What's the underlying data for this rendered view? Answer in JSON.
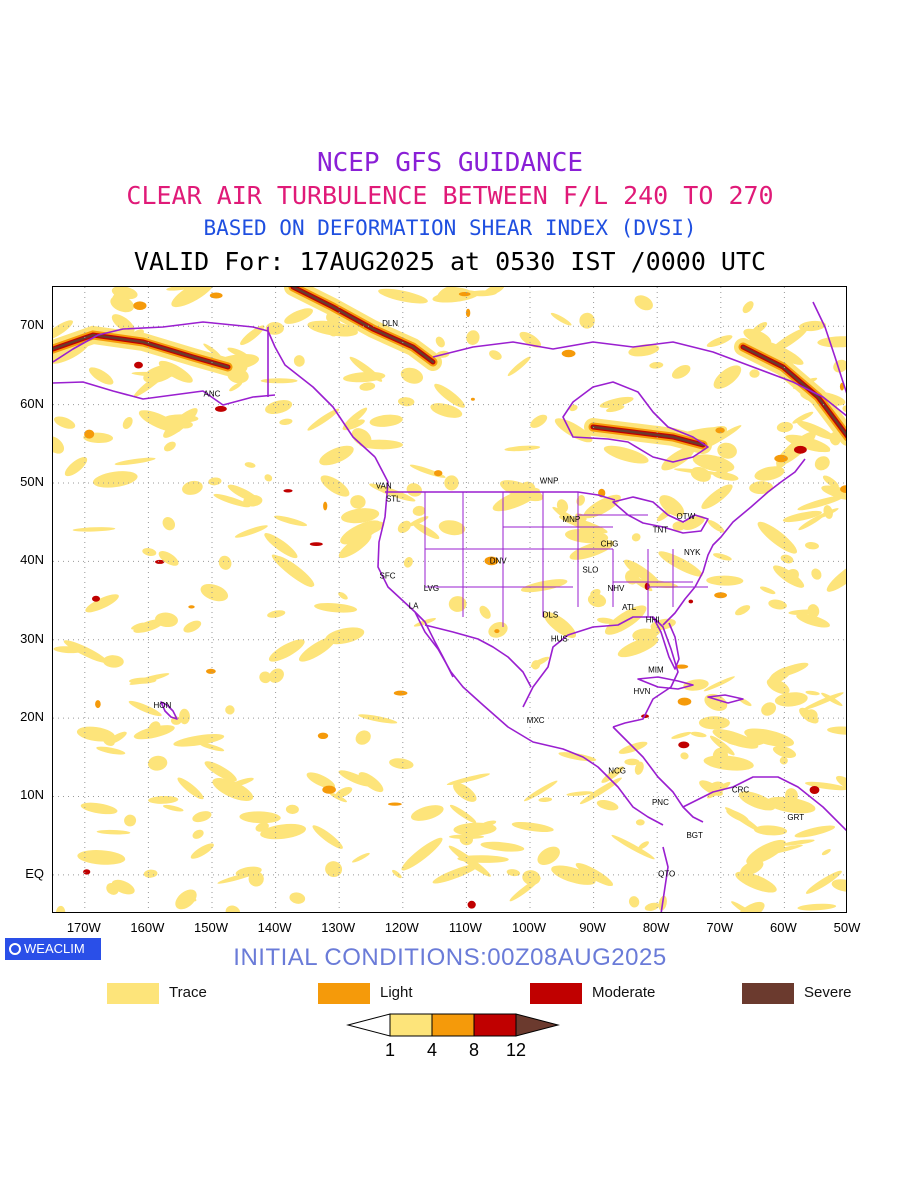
{
  "titles": {
    "line1": "NCEP GFS GUIDANCE",
    "line2": "CLEAR AIR TURBULENCE BETWEEN F/L 240 TO 270",
    "line3": "BASED ON DEFORMATION SHEAR INDEX (DVSI)",
    "line4": "VALID For: 17AUG2025 at 0530 IST /0000 UTC"
  },
  "colors": {
    "title1": "#8a1fd6",
    "title2": "#e01a78",
    "title3": "#1f4fe0",
    "boundary": "#9a1fd0",
    "trace": "#fde47a",
    "light": "#f59a0a",
    "moderate": "#c00000",
    "severe": "#6b3a2e",
    "brand": "#2a4fe8",
    "init": "#6a7bd8"
  },
  "map": {
    "extent": {
      "lon_min": -175,
      "lon_max": -50,
      "lat_min": -5,
      "lat_max": 75
    },
    "lat_ticks": [
      {
        "lat": 70,
        "label": "70N"
      },
      {
        "lat": 60,
        "label": "60N"
      },
      {
        "lat": 50,
        "label": "50N"
      },
      {
        "lat": 40,
        "label": "40N"
      },
      {
        "lat": 30,
        "label": "30N"
      },
      {
        "lat": 20,
        "label": "20N"
      },
      {
        "lat": 10,
        "label": "10N"
      },
      {
        "lat": 0,
        "label": "EQ"
      }
    ],
    "lon_ticks": [
      {
        "lon": -170,
        "label": "170W"
      },
      {
        "lon": -160,
        "label": "160W"
      },
      {
        "lon": -150,
        "label": "150W"
      },
      {
        "lon": -140,
        "label": "140W"
      },
      {
        "lon": -130,
        "label": "130W"
      },
      {
        "lon": -120,
        "label": "120W"
      },
      {
        "lon": -110,
        "label": "110W"
      },
      {
        "lon": -100,
        "label": "100W"
      },
      {
        "lon": -90,
        "label": "90W"
      },
      {
        "lon": -80,
        "label": "80W"
      },
      {
        "lon": -70,
        "label": "70W"
      },
      {
        "lon": -60,
        "label": "60W"
      },
      {
        "lon": -50,
        "label": "50W"
      }
    ],
    "stations": [
      {
        "code": "DLN",
        "lon": -122,
        "lat": 70
      },
      {
        "code": "ANC",
        "lon": -150,
        "lat": 61
      },
      {
        "code": "VAN",
        "lon": -123,
        "lat": 49.3
      },
      {
        "code": "STL",
        "lon": -121.5,
        "lat": 47.6
      },
      {
        "code": "WNP",
        "lon": -97,
        "lat": 49.9
      },
      {
        "code": "MNP",
        "lon": -93.5,
        "lat": 45
      },
      {
        "code": "TNT",
        "lon": -79.5,
        "lat": 43.7
      },
      {
        "code": "OTW",
        "lon": -75.5,
        "lat": 45.4
      },
      {
        "code": "CHG",
        "lon": -87.5,
        "lat": 41.9
      },
      {
        "code": "NYK",
        "lon": -74.5,
        "lat": 40.8
      },
      {
        "code": "DNV",
        "lon": -105,
        "lat": 39.7
      },
      {
        "code": "SFC",
        "lon": -122.4,
        "lat": 37.8
      },
      {
        "code": "SLO",
        "lon": -90.5,
        "lat": 38.6
      },
      {
        "code": "LVG",
        "lon": -115.5,
        "lat": 36.2
      },
      {
        "code": "NHV",
        "lon": -86.5,
        "lat": 36.2
      },
      {
        "code": "LA",
        "lon": -118.3,
        "lat": 34
      },
      {
        "code": "ATL",
        "lon": -84.4,
        "lat": 33.8
      },
      {
        "code": "DLS",
        "lon": -96.8,
        "lat": 32.8
      },
      {
        "code": "HHI",
        "lon": -80.7,
        "lat": 32.2
      },
      {
        "code": "HUS",
        "lon": -95.4,
        "lat": 29.8
      },
      {
        "code": "MIM",
        "lon": -80.2,
        "lat": 25.8
      },
      {
        "code": "HVN",
        "lon": -82.4,
        "lat": 23.1
      },
      {
        "code": "HON",
        "lon": -157.8,
        "lat": 21.3
      },
      {
        "code": "MXC",
        "lon": -99.1,
        "lat": 19.4
      },
      {
        "code": "NCG",
        "lon": -86.3,
        "lat": 12.9
      },
      {
        "code": "CRC",
        "lon": -66.9,
        "lat": 10.5
      },
      {
        "code": "PNC",
        "lon": -79.5,
        "lat": 8.9
      },
      {
        "code": "GRT",
        "lon": -58.2,
        "lat": 7
      },
      {
        "code": "BGT",
        "lon": -74.1,
        "lat": 4.7
      },
      {
        "code": "QTO",
        "lon": -78.5,
        "lat": -0.2
      }
    ]
  },
  "brand": {
    "label": "WEACLIM",
    "icon": "circle-logo-icon"
  },
  "initial_conditions": "INITIAL CONDITIONS:00Z08AUG2025",
  "legend": [
    {
      "label": "Trace",
      "color": "#fde47a"
    },
    {
      "label": "Light",
      "color": "#f59a0a"
    },
    {
      "label": "Moderate",
      "color": "#c00000"
    },
    {
      "label": "Severe",
      "color": "#6b3a2e"
    }
  ],
  "colorbar": {
    "levels": [
      "1",
      "4",
      "8",
      "12"
    ],
    "colors": [
      "#ffffff",
      "#fde47a",
      "#f59a0a",
      "#c00000",
      "#6b3a2e"
    ]
  }
}
